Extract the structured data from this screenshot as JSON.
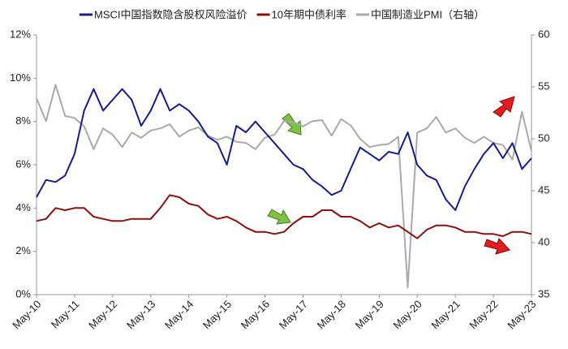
{
  "chart_data": {
    "type": "line",
    "categories": [
      "May-10",
      null,
      null,
      null,
      "May-11",
      null,
      null,
      null,
      "May-12",
      null,
      null,
      null,
      "May-13",
      null,
      null,
      null,
      "May-14",
      null,
      null,
      null,
      "May-15",
      null,
      null,
      null,
      "May-16",
      null,
      null,
      null,
      "May-17",
      null,
      null,
      null,
      "May-18",
      null,
      null,
      null,
      "May-19",
      null,
      null,
      null,
      "May-20",
      null,
      null,
      null,
      "May-21",
      null,
      null,
      null,
      "May-22",
      null,
      null,
      null,
      "May-23"
    ],
    "series": [
      {
        "name": "MSCI中国指数隐含股权风险溢价",
        "color": "#1b1b8a",
        "values": [
          4.5,
          5.3,
          5.2,
          5.5,
          6.5,
          8.5,
          9.5,
          8.5,
          9.0,
          9.5,
          9.0,
          7.8,
          8.5,
          9.5,
          8.5,
          8.8,
          8.5,
          8.0,
          7.3,
          7.0,
          6.0,
          7.8,
          7.5,
          8.0,
          7.5,
          7.0,
          6.5,
          6.0,
          5.8,
          5.3,
          5.0,
          4.6,
          4.8,
          5.8,
          6.8,
          6.5,
          6.2,
          6.6,
          6.5,
          7.5,
          6.0,
          5.5,
          5.3,
          4.4,
          3.9,
          5.0,
          5.8,
          6.5,
          7.0,
          6.3,
          7.0,
          5.8,
          6.3
        ]
      },
      {
        "name": "10年期中债利率",
        "color": "#8b1010",
        "values": [
          3.4,
          3.5,
          4.0,
          3.9,
          4.0,
          4.0,
          3.6,
          3.5,
          3.4,
          3.4,
          3.5,
          3.5,
          3.5,
          4.0,
          4.6,
          4.5,
          4.2,
          4.1,
          3.7,
          3.5,
          3.6,
          3.4,
          3.1,
          2.9,
          2.9,
          2.8,
          2.9,
          3.3,
          3.6,
          3.6,
          3.9,
          3.9,
          3.6,
          3.6,
          3.4,
          3.1,
          3.3,
          3.1,
          3.2,
          2.9,
          2.6,
          3.0,
          3.2,
          3.2,
          3.1,
          2.9,
          2.9,
          2.8,
          2.8,
          2.7,
          2.9,
          2.9,
          2.8
        ]
      },
      {
        "name": "中国制造业PMI（右轴）",
        "color": "#aaaaaa",
        "axis": "y2",
        "values": [
          53.9,
          51.7,
          55.2,
          52.2,
          52.0,
          51.2,
          49.0,
          51.0,
          50.4,
          49.2,
          50.6,
          50.1,
          50.8,
          51.0,
          51.4,
          50.2,
          50.8,
          51.1,
          50.3,
          49.9,
          50.2,
          49.7,
          49.6,
          49.0,
          50.1,
          50.4,
          51.7,
          51.6,
          51.2,
          51.7,
          51.8,
          50.3,
          51.9,
          51.3,
          50.0,
          49.2,
          49.4,
          49.5,
          50.2,
          35.7,
          50.6,
          51.0,
          52.1,
          50.6,
          51.0,
          50.1,
          49.6,
          50.2,
          49.6,
          49.4,
          48.0,
          52.6,
          48.8
        ]
      }
    ],
    "ylim": [
      0,
      12
    ],
    "yticks": [
      {
        "value": 0,
        "label": "0%"
      },
      {
        "value": 2,
        "label": "2%"
      },
      {
        "value": 4,
        "label": "4%"
      },
      {
        "value": 6,
        "label": "6%"
      },
      {
        "value": 8,
        "label": "8%"
      },
      {
        "value": 10,
        "label": "10%"
      },
      {
        "value": 12,
        "label": "12%"
      }
    ],
    "y2lim": [
      35,
      60
    ],
    "y2ticks": [
      35,
      40,
      45,
      50,
      55,
      60
    ],
    "grid": false
  }
}
